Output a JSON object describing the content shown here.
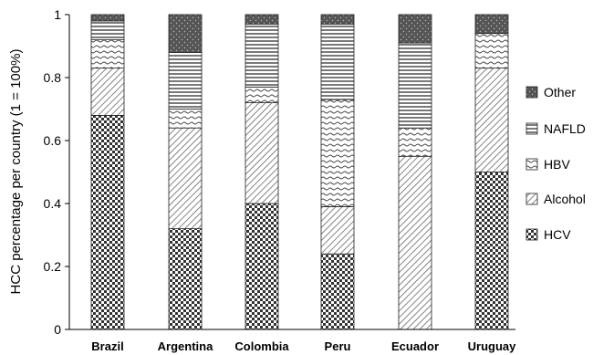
{
  "chart_data": {
    "type": "bar",
    "stacked": true,
    "categories": [
      "Brazil",
      "Argentina",
      "Colombia",
      "Peru",
      "Ecuador",
      "Uruguay"
    ],
    "ylabel": "HCC percentage per country (1 = 100%)",
    "xlabel": "",
    "ylim": [
      0,
      1
    ],
    "yticks": [
      "0",
      "0.2",
      "0.4",
      "0.6",
      "0.8",
      "1"
    ],
    "ytick_values": [
      0,
      0.2,
      0.4,
      0.6,
      0.8,
      1
    ],
    "grid": false,
    "legend_position": "right",
    "series": [
      {
        "name": "HCV",
        "pattern": "checker",
        "values": [
          0.68,
          0.32,
          0.4,
          0.24,
          0.0,
          0.5
        ]
      },
      {
        "name": "Alcohol",
        "pattern": "diagonal",
        "values": [
          0.15,
          0.32,
          0.32,
          0.15,
          0.55,
          0.33
        ]
      },
      {
        "name": "HBV",
        "pattern": "wavy",
        "values": [
          0.09,
          0.06,
          0.05,
          0.34,
          0.09,
          0.11
        ]
      },
      {
        "name": "NAFLD",
        "pattern": "horizontal",
        "values": [
          0.06,
          0.18,
          0.2,
          0.24,
          0.27,
          0.0
        ]
      },
      {
        "name": "Other",
        "pattern": "dotted-dark",
        "values": [
          0.02,
          0.12,
          0.03,
          0.03,
          0.09,
          0.06
        ]
      }
    ],
    "legend_order": [
      "Other",
      "NAFLD",
      "HBV",
      "Alcohol",
      "HCV"
    ]
  }
}
